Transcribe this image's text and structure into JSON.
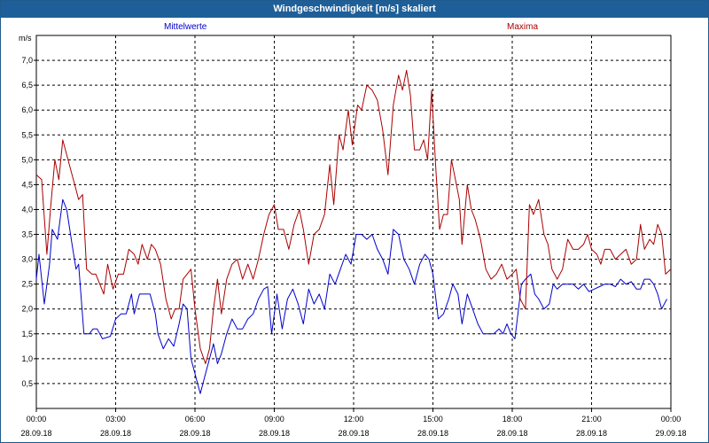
{
  "window": {
    "title": "Windgeschwindigkeit [m/s] skaliert"
  },
  "chart_data": {
    "type": "line",
    "title": "Windgeschwindigkeit [m/s] skaliert",
    "ylabel": "m/s",
    "xlabel": "",
    "ylim": [
      0,
      7.5
    ],
    "xlim_hours": [
      0,
      24
    ],
    "yticks": [
      "0,5",
      "1,0",
      "1,5",
      "2,0",
      "2,5",
      "3,0",
      "3,5",
      "4,0",
      "4,5",
      "5,0",
      "5,5",
      "6,0",
      "6,5",
      "7,0"
    ],
    "xticks": [
      {
        "time": "00:00",
        "date": "28.09.18"
      },
      {
        "time": "03:00",
        "date": "28.09.18"
      },
      {
        "time": "06:00",
        "date": "28.09.18"
      },
      {
        "time": "09:00",
        "date": "28.09.18"
      },
      {
        "time": "12:00",
        "date": "28.09.18"
      },
      {
        "time": "15:00",
        "date": "28.09.18"
      },
      {
        "time": "18:00",
        "date": "28.09.18"
      },
      {
        "time": "21:00",
        "date": "28.09.18"
      },
      {
        "time": "00:00",
        "date": "29.09.18"
      }
    ],
    "grid": true,
    "series": [
      {
        "name": "Mittelwerte",
        "color": "#0000cc",
        "points": [
          [
            0,
            2.6
          ],
          [
            0.1,
            3.1
          ],
          [
            0.3,
            2.1
          ],
          [
            0.5,
            2.9
          ],
          [
            0.6,
            3.6
          ],
          [
            0.8,
            3.4
          ],
          [
            1.0,
            4.2
          ],
          [
            1.15,
            4.0
          ],
          [
            1.35,
            3.3
          ],
          [
            1.5,
            2.8
          ],
          [
            1.6,
            2.9
          ],
          [
            1.8,
            1.5
          ],
          [
            2.0,
            1.5
          ],
          [
            2.15,
            1.6
          ],
          [
            2.3,
            1.6
          ],
          [
            2.5,
            1.4
          ],
          [
            2.8,
            1.45
          ],
          [
            3.0,
            1.8
          ],
          [
            3.2,
            1.9
          ],
          [
            3.4,
            1.9
          ],
          [
            3.6,
            2.3
          ],
          [
            3.7,
            1.9
          ],
          [
            3.9,
            2.3
          ],
          [
            4.1,
            2.3
          ],
          [
            4.3,
            2.3
          ],
          [
            4.5,
            1.9
          ],
          [
            4.6,
            1.5
          ],
          [
            4.8,
            1.2
          ],
          [
            5.0,
            1.4
          ],
          [
            5.2,
            1.25
          ],
          [
            5.4,
            1.7
          ],
          [
            5.55,
            2.1
          ],
          [
            5.7,
            2.0
          ],
          [
            5.85,
            1.0
          ],
          [
            6.0,
            0.7
          ],
          [
            6.2,
            0.3
          ],
          [
            6.4,
            0.7
          ],
          [
            6.55,
            1.0
          ],
          [
            6.7,
            1.3
          ],
          [
            6.85,
            0.9
          ],
          [
            7.0,
            1.1
          ],
          [
            7.2,
            1.5
          ],
          [
            7.4,
            1.8
          ],
          [
            7.6,
            1.6
          ],
          [
            7.8,
            1.6
          ],
          [
            8.0,
            1.8
          ],
          [
            8.2,
            1.9
          ],
          [
            8.4,
            2.2
          ],
          [
            8.6,
            2.4
          ],
          [
            8.75,
            2.45
          ],
          [
            8.9,
            1.5
          ],
          [
            9.1,
            2.3
          ],
          [
            9.3,
            1.6
          ],
          [
            9.5,
            2.2
          ],
          [
            9.7,
            2.4
          ],
          [
            9.9,
            2.1
          ],
          [
            10.1,
            1.7
          ],
          [
            10.3,
            2.4
          ],
          [
            10.5,
            2.1
          ],
          [
            10.7,
            2.3
          ],
          [
            10.9,
            2.0
          ],
          [
            11.1,
            2.7
          ],
          [
            11.3,
            2.5
          ],
          [
            11.5,
            2.8
          ],
          [
            11.7,
            3.1
          ],
          [
            11.9,
            2.9
          ],
          [
            12.1,
            3.5
          ],
          [
            12.3,
            3.5
          ],
          [
            12.5,
            3.4
          ],
          [
            12.7,
            3.5
          ],
          [
            12.9,
            3.2
          ],
          [
            13.1,
            3.0
          ],
          [
            13.3,
            2.7
          ],
          [
            13.5,
            3.6
          ],
          [
            13.7,
            3.5
          ],
          [
            13.9,
            3.0
          ],
          [
            14.1,
            2.8
          ],
          [
            14.3,
            2.5
          ],
          [
            14.5,
            2.9
          ],
          [
            14.7,
            3.1
          ],
          [
            14.85,
            3.0
          ],
          [
            15.0,
            2.7
          ],
          [
            15.2,
            1.8
          ],
          [
            15.4,
            1.9
          ],
          [
            15.6,
            2.2
          ],
          [
            15.75,
            2.5
          ],
          [
            15.95,
            2.3
          ],
          [
            16.1,
            1.7
          ],
          [
            16.3,
            2.3
          ],
          [
            16.5,
            2.0
          ],
          [
            16.7,
            1.7
          ],
          [
            16.9,
            1.5
          ],
          [
            17.1,
            1.5
          ],
          [
            17.3,
            1.5
          ],
          [
            17.5,
            1.6
          ],
          [
            17.65,
            1.5
          ],
          [
            17.8,
            1.7
          ],
          [
            17.95,
            1.5
          ],
          [
            18.1,
            1.4
          ],
          [
            18.35,
            2.5
          ],
          [
            18.5,
            2.6
          ],
          [
            18.7,
            2.7
          ],
          [
            18.85,
            2.3
          ],
          [
            19.0,
            2.2
          ],
          [
            19.2,
            2.0
          ],
          [
            19.4,
            2.1
          ],
          [
            19.55,
            2.5
          ],
          [
            19.7,
            2.4
          ],
          [
            19.9,
            2.5
          ],
          [
            20.1,
            2.5
          ],
          [
            20.3,
            2.5
          ],
          [
            20.5,
            2.4
          ],
          [
            20.7,
            2.5
          ],
          [
            20.9,
            2.35
          ],
          [
            21.1,
            2.4
          ],
          [
            21.3,
            2.45
          ],
          [
            21.5,
            2.5
          ],
          [
            21.7,
            2.5
          ],
          [
            21.9,
            2.45
          ],
          [
            22.1,
            2.6
          ],
          [
            22.3,
            2.5
          ],
          [
            22.5,
            2.55
          ],
          [
            22.7,
            2.4
          ],
          [
            22.85,
            2.4
          ],
          [
            23.0,
            2.6
          ],
          [
            23.2,
            2.6
          ],
          [
            23.35,
            2.5
          ],
          [
            23.5,
            2.3
          ],
          [
            23.65,
            2.0
          ],
          [
            23.85,
            2.2
          ]
        ]
      },
      {
        "name": "Maxima",
        "color": "#aa0000",
        "points": [
          [
            0,
            4.7
          ],
          [
            0.2,
            4.6
          ],
          [
            0.4,
            3.1
          ],
          [
            0.55,
            4.1
          ],
          [
            0.7,
            5.0
          ],
          [
            0.85,
            4.6
          ],
          [
            1.0,
            5.4
          ],
          [
            1.15,
            5.1
          ],
          [
            1.3,
            4.8
          ],
          [
            1.5,
            4.4
          ],
          [
            1.6,
            4.2
          ],
          [
            1.75,
            4.3
          ],
          [
            1.9,
            2.8
          ],
          [
            2.1,
            2.7
          ],
          [
            2.25,
            2.7
          ],
          [
            2.4,
            2.5
          ],
          [
            2.55,
            2.3
          ],
          [
            2.7,
            2.9
          ],
          [
            2.9,
            2.4
          ],
          [
            3.1,
            2.7
          ],
          [
            3.3,
            2.7
          ],
          [
            3.5,
            3.2
          ],
          [
            3.7,
            3.1
          ],
          [
            3.85,
            2.9
          ],
          [
            4.0,
            3.3
          ],
          [
            4.2,
            3.0
          ],
          [
            4.35,
            3.3
          ],
          [
            4.5,
            3.2
          ],
          [
            4.7,
            2.9
          ],
          [
            4.9,
            2.2
          ],
          [
            5.1,
            1.8
          ],
          [
            5.25,
            2.0
          ],
          [
            5.4,
            2.0
          ],
          [
            5.55,
            2.6
          ],
          [
            5.7,
            2.7
          ],
          [
            5.85,
            2.8
          ],
          [
            6.0,
            2.0
          ],
          [
            6.2,
            1.2
          ],
          [
            6.4,
            0.9
          ],
          [
            6.55,
            1.2
          ],
          [
            6.7,
            2.0
          ],
          [
            6.85,
            2.6
          ],
          [
            7.0,
            1.9
          ],
          [
            7.2,
            2.6
          ],
          [
            7.4,
            2.9
          ],
          [
            7.6,
            3.0
          ],
          [
            7.8,
            2.6
          ],
          [
            8.0,
            2.9
          ],
          [
            8.2,
            2.6
          ],
          [
            8.4,
            3.0
          ],
          [
            8.6,
            3.5
          ],
          [
            8.8,
            3.9
          ],
          [
            9.0,
            4.1
          ],
          [
            9.15,
            3.6
          ],
          [
            9.35,
            3.6
          ],
          [
            9.55,
            3.2
          ],
          [
            9.75,
            3.7
          ],
          [
            9.95,
            4.0
          ],
          [
            10.1,
            3.6
          ],
          [
            10.3,
            2.9
          ],
          [
            10.5,
            3.5
          ],
          [
            10.7,
            3.6
          ],
          [
            10.9,
            3.9
          ],
          [
            11.1,
            4.9
          ],
          [
            11.25,
            4.1
          ],
          [
            11.45,
            5.5
          ],
          [
            11.6,
            5.2
          ],
          [
            11.8,
            6.0
          ],
          [
            11.95,
            5.3
          ],
          [
            12.15,
            6.1
          ],
          [
            12.3,
            6.0
          ],
          [
            12.5,
            6.5
          ],
          [
            12.7,
            6.4
          ],
          [
            12.9,
            6.2
          ],
          [
            13.1,
            5.6
          ],
          [
            13.3,
            4.7
          ],
          [
            13.5,
            6.1
          ],
          [
            13.7,
            6.7
          ],
          [
            13.85,
            6.4
          ],
          [
            14.0,
            6.8
          ],
          [
            14.15,
            6.3
          ],
          [
            14.3,
            5.2
          ],
          [
            14.5,
            5.2
          ],
          [
            14.65,
            5.4
          ],
          [
            14.8,
            5.0
          ],
          [
            14.95,
            6.4
          ],
          [
            15.1,
            4.9
          ],
          [
            15.25,
            3.6
          ],
          [
            15.4,
            3.9
          ],
          [
            15.55,
            3.9
          ],
          [
            15.7,
            5.0
          ],
          [
            15.85,
            4.6
          ],
          [
            16.0,
            4.2
          ],
          [
            16.1,
            3.3
          ],
          [
            16.3,
            4.5
          ],
          [
            16.45,
            4.0
          ],
          [
            16.6,
            3.8
          ],
          [
            16.8,
            3.4
          ],
          [
            17.0,
            2.8
          ],
          [
            17.2,
            2.6
          ],
          [
            17.4,
            2.7
          ],
          [
            17.6,
            2.9
          ],
          [
            17.8,
            2.6
          ],
          [
            18.0,
            2.7
          ],
          [
            18.15,
            2.8
          ],
          [
            18.3,
            2.2
          ],
          [
            18.5,
            2.0
          ],
          [
            18.65,
            4.1
          ],
          [
            18.8,
            3.9
          ],
          [
            19.0,
            4.2
          ],
          [
            19.2,
            3.5
          ],
          [
            19.35,
            3.3
          ],
          [
            19.5,
            2.8
          ],
          [
            19.7,
            2.6
          ],
          [
            19.9,
            2.8
          ],
          [
            20.1,
            3.4
          ],
          [
            20.3,
            3.2
          ],
          [
            20.5,
            3.2
          ],
          [
            20.7,
            3.3
          ],
          [
            20.85,
            3.5
          ],
          [
            21.0,
            3.2
          ],
          [
            21.2,
            3.1
          ],
          [
            21.35,
            2.9
          ],
          [
            21.5,
            3.2
          ],
          [
            21.7,
            3.2
          ],
          [
            21.9,
            3.0
          ],
          [
            22.1,
            3.1
          ],
          [
            22.3,
            3.2
          ],
          [
            22.5,
            2.9
          ],
          [
            22.7,
            3.0
          ],
          [
            22.85,
            3.7
          ],
          [
            23.0,
            3.2
          ],
          [
            23.2,
            3.4
          ],
          [
            23.35,
            3.3
          ],
          [
            23.5,
            3.7
          ],
          [
            23.65,
            3.5
          ],
          [
            23.8,
            2.7
          ],
          [
            24.0,
            2.8
          ]
        ]
      }
    ]
  }
}
